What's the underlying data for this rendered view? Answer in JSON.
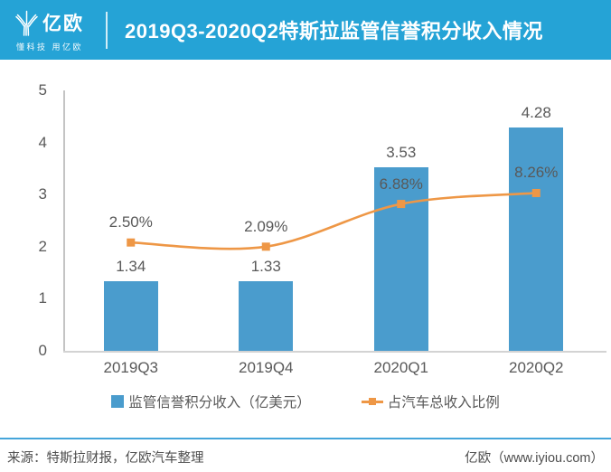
{
  "header": {
    "brand": {
      "name": "亿欧",
      "tagline": "懂科技 用亿欧",
      "logo_icon": "iyiou-y-mark"
    },
    "title": "2019Q3-2020Q2特斯拉监管信誉积分收入情况",
    "bg_color": "#25A3D6"
  },
  "chart_data": {
    "type": "bar",
    "subtype": "bar+line combo",
    "title": "2019Q3-2020Q2特斯拉监管信誉积分收入情况",
    "categories": [
      "2019Q3",
      "2019Q4",
      "2020Q1",
      "2020Q2"
    ],
    "series": [
      {
        "name": "监管信誉积分收入（亿美元）",
        "type": "bar",
        "values": [
          1.34,
          1.33,
          3.53,
          4.28
        ],
        "labels": [
          "1.34",
          "1.33",
          "3.53",
          "4.28"
        ],
        "color": "#4A9CCD"
      },
      {
        "name": "占汽车总收入比例",
        "type": "line",
        "values": [
          2.5,
          2.09,
          6.88,
          8.26
        ],
        "labels": [
          "2.50%",
          "2.09%",
          "6.88%",
          "8.26%"
        ],
        "axis_positions_primary": [
          2.08,
          2.0,
          2.82,
          3.03
        ],
        "color": "#EE9746",
        "marker": "square"
      }
    ],
    "xlabel": "",
    "ylabel": "",
    "ylim": [
      0,
      5
    ],
    "yticks": [
      0,
      1,
      2,
      3,
      4,
      5
    ],
    "grid": false,
    "legend_position": "bottom",
    "secondary_axis_visible": false,
    "label_color": "#595959"
  },
  "footer": {
    "source": "来源：特斯拉财报，亿欧汽车整理",
    "site": "亿欧（www.iyiou.com）",
    "divider_color": "#45A5DA"
  }
}
